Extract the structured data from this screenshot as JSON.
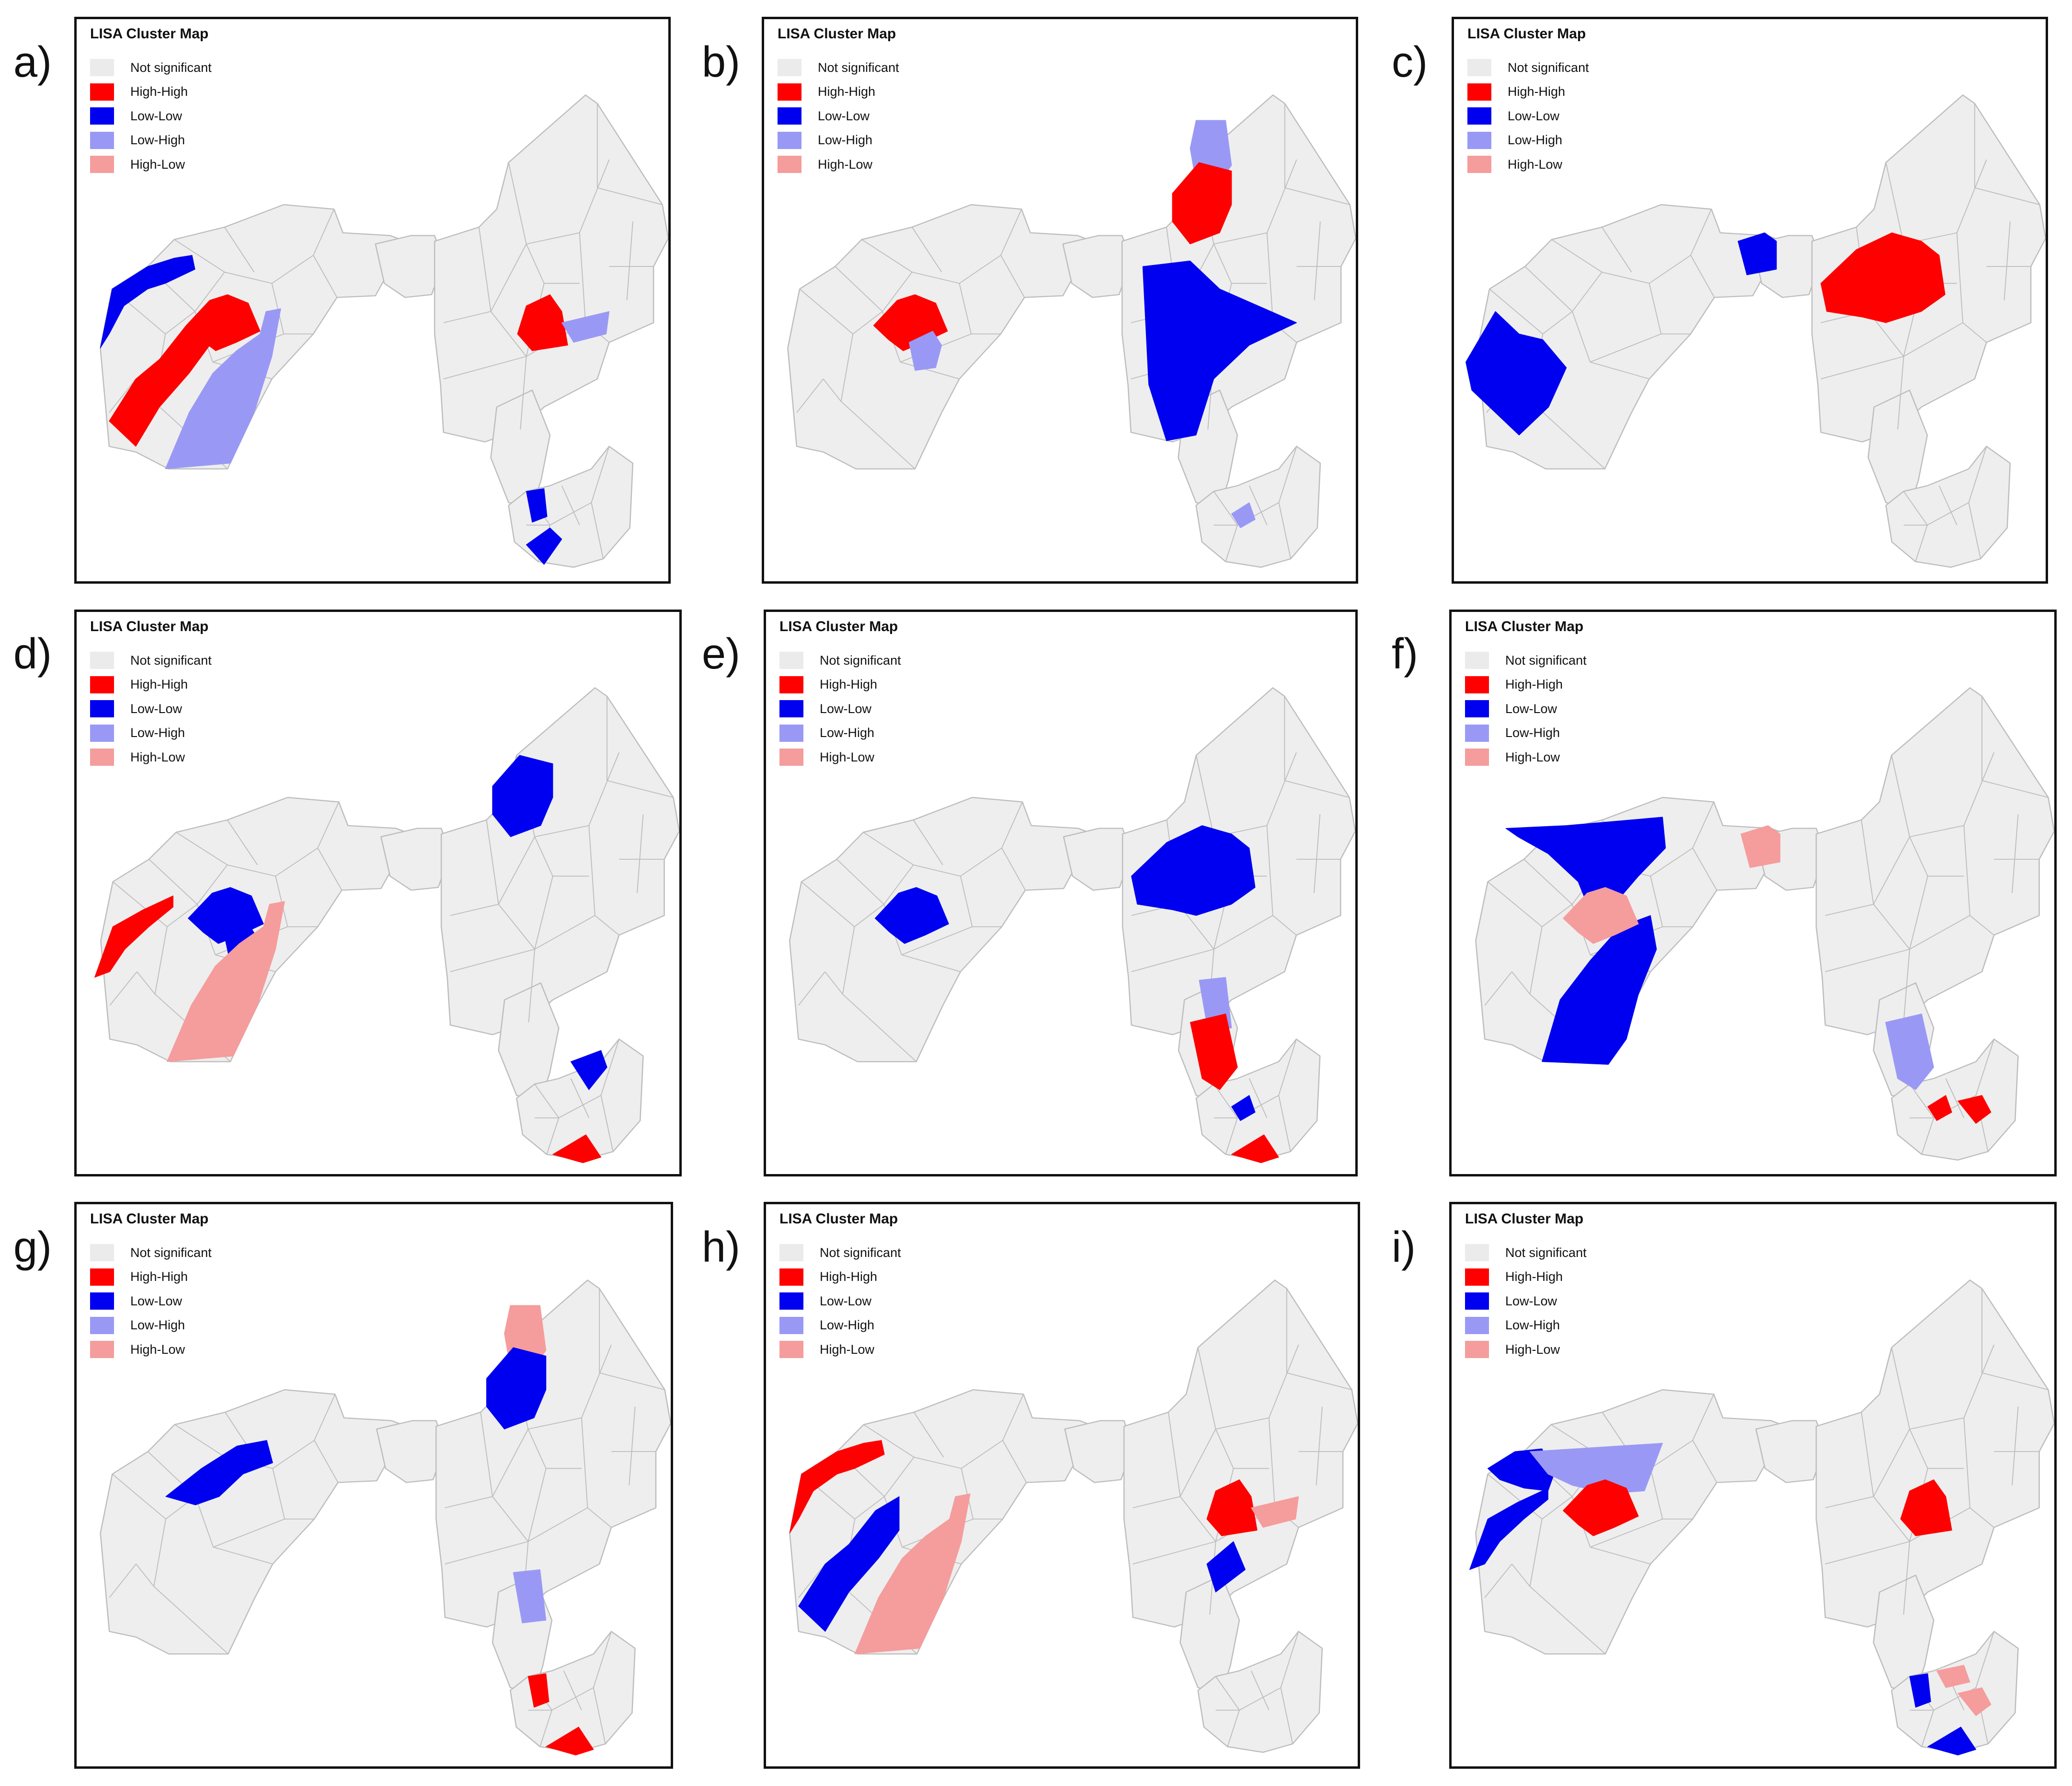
{
  "legend": {
    "title": "LISA Cluster Map",
    "items": [
      {
        "key": "ns",
        "label": "Not significant",
        "color": "#ebebeb"
      },
      {
        "key": "hh",
        "label": "High-High",
        "color": "#ff0000"
      },
      {
        "key": "ll",
        "label": "Low-Low",
        "color": "#0000f0"
      },
      {
        "key": "lh",
        "label": "Low-High",
        "color": "#9999f5"
      },
      {
        "key": "hl",
        "label": "High-Low",
        "color": "#f59c9c"
      }
    ]
  },
  "colors": {
    "base": "#eeeeee",
    "boundary": "#bdbdbd",
    "frame": "#111111"
  },
  "panels": [
    {
      "label": "a)",
      "clusters": [
        {
          "class": "ll",
          "region": "west-northwest"
        },
        {
          "class": "hh",
          "region": "west-southwest"
        },
        {
          "class": "hh",
          "region": "west-center"
        },
        {
          "class": "lh",
          "region": "west-south"
        },
        {
          "class": "hh",
          "region": "east-center"
        },
        {
          "class": "lh",
          "region": "east-east"
        },
        {
          "class": "ll",
          "region": "south-west"
        },
        {
          "class": "ll",
          "region": "south-southwest"
        }
      ]
    },
    {
      "label": "b)",
      "clusters": [
        {
          "class": "lh",
          "region": "east-north"
        },
        {
          "class": "hh",
          "region": "east-north-center"
        },
        {
          "class": "hh",
          "region": "west-center"
        },
        {
          "class": "lh",
          "region": "west-center-south"
        },
        {
          "class": "ll",
          "region": "east-south-large"
        },
        {
          "class": "lh",
          "region": "south-center"
        }
      ]
    },
    {
      "label": "c)",
      "clusters": [
        {
          "class": "ll",
          "region": "west-southwest-large"
        },
        {
          "class": "ll",
          "region": "west-east"
        },
        {
          "class": "hh",
          "region": "east-center-large"
        }
      ]
    },
    {
      "label": "d)",
      "clusters": [
        {
          "class": "ll",
          "region": "east-north-center"
        },
        {
          "class": "hh",
          "region": "west-west"
        },
        {
          "class": "ll",
          "region": "west-center"
        },
        {
          "class": "ll",
          "region": "west-center-south"
        },
        {
          "class": "hl",
          "region": "west-south"
        },
        {
          "class": "ll",
          "region": "south-northeast"
        },
        {
          "class": "hh",
          "region": "south-south"
        }
      ]
    },
    {
      "label": "e)",
      "clusters": [
        {
          "class": "ll",
          "region": "east-center-large"
        },
        {
          "class": "ll",
          "region": "west-center"
        },
        {
          "class": "lh",
          "region": "east-south"
        },
        {
          "class": "hh",
          "region": "east-south-tip"
        },
        {
          "class": "ll",
          "region": "south-center"
        },
        {
          "class": "hh",
          "region": "south-south"
        }
      ]
    },
    {
      "label": "f)",
      "clusters": [
        {
          "class": "ll",
          "region": "west-north-large"
        },
        {
          "class": "ll",
          "region": "west-south-large"
        },
        {
          "class": "hl",
          "region": "west-east"
        },
        {
          "class": "hl",
          "region": "west-center"
        },
        {
          "class": "lh",
          "region": "east-south-tip"
        },
        {
          "class": "hh",
          "region": "south-center"
        },
        {
          "class": "hh",
          "region": "south-east"
        }
      ]
    },
    {
      "label": "g)",
      "clusters": [
        {
          "class": "hl",
          "region": "east-north"
        },
        {
          "class": "ll",
          "region": "east-north-center"
        },
        {
          "class": "ll",
          "region": "west-center-large"
        },
        {
          "class": "lh",
          "region": "east-south"
        },
        {
          "class": "hh",
          "region": "south-west"
        },
        {
          "class": "hh",
          "region": "south-south"
        }
      ]
    },
    {
      "label": "h)",
      "clusters": [
        {
          "class": "hh",
          "region": "west-northwest"
        },
        {
          "class": "ll",
          "region": "west-southwest"
        },
        {
          "class": "hl",
          "region": "west-south"
        },
        {
          "class": "hh",
          "region": "east-center"
        },
        {
          "class": "ll",
          "region": "east-south-center"
        },
        {
          "class": "hl",
          "region": "east-east"
        }
      ]
    },
    {
      "label": "i)",
      "clusters": [
        {
          "class": "ll",
          "region": "west-north"
        },
        {
          "class": "lh",
          "region": "west-north-east"
        },
        {
          "class": "hh",
          "region": "west-center"
        },
        {
          "class": "ll",
          "region": "west-west"
        },
        {
          "class": "hh",
          "region": "east-center"
        },
        {
          "class": "hl",
          "region": "south-north"
        },
        {
          "class": "ll",
          "region": "south-west"
        },
        {
          "class": "hl",
          "region": "south-east"
        },
        {
          "class": "ll",
          "region": "south-south"
        }
      ]
    }
  ]
}
